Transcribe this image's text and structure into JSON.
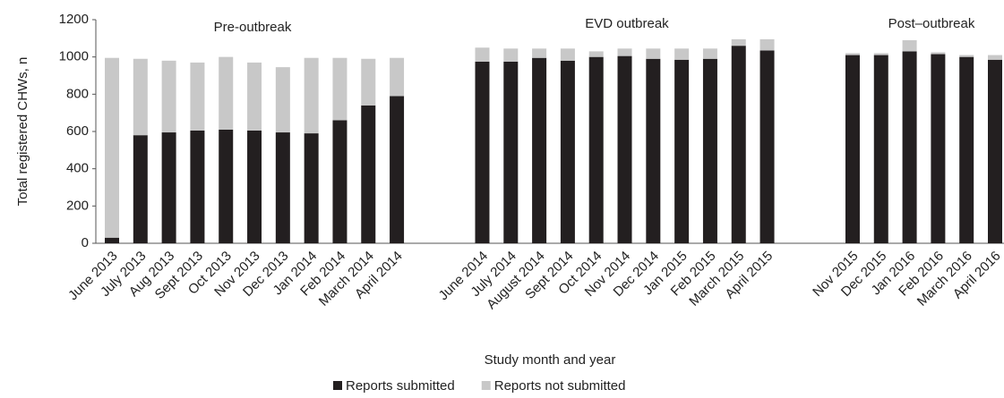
{
  "chart_data": {
    "type": "stacked_bar",
    "y_label": "Total registered CHWs, n",
    "x_label": "Study month and year",
    "annotations": [
      "Pre-outbreak",
      "EVD outbreak",
      "Post–outbreak"
    ],
    "categories": [
      "June 2013",
      "July 2013",
      "Aug 2013",
      "Sept 2013",
      "Oct 2013",
      "Nov 2013",
      "Dec 2013",
      "Jan 2014",
      "Feb 2014",
      "March 2014",
      "April 2014",
      null,
      null,
      "June 2014",
      "July 2014",
      "August 2014",
      "Sept 2014",
      "Oct 2014",
      "Nov 2014",
      "Dec 2014",
      "Jan 2015",
      "Feb 2015",
      "March 2015",
      "April 2015",
      null,
      null,
      "Nov 2015",
      "Dec 2015",
      "Jan 2016",
      "Feb 2016",
      "March 2016",
      "April 2016"
    ],
    "series": [
      {
        "name": "Reports submitted",
        "color": "#231f20",
        "values": [
          30,
          580,
          595,
          605,
          610,
          605,
          595,
          590,
          660,
          740,
          790,
          null,
          null,
          975,
          975,
          995,
          980,
          1000,
          1005,
          990,
          985,
          990,
          1060,
          1035,
          null,
          null,
          1010,
          1010,
          1030,
          1015,
          1000,
          985
        ]
      },
      {
        "name": "Reports not submitted",
        "color": "#c8c8c8",
        "values": [
          965,
          410,
          385,
          365,
          390,
          365,
          350,
          405,
          335,
          250,
          205,
          null,
          null,
          75,
          70,
          50,
          65,
          30,
          40,
          55,
          60,
          55,
          35,
          60,
          null,
          null,
          10,
          10,
          60,
          10,
          10,
          25
        ]
      }
    ],
    "ylim": [
      0,
      1200
    ],
    "yticks": [
      0,
      200,
      400,
      600,
      800,
      1000,
      1200
    ],
    "grid": false,
    "legend": "bottom"
  }
}
